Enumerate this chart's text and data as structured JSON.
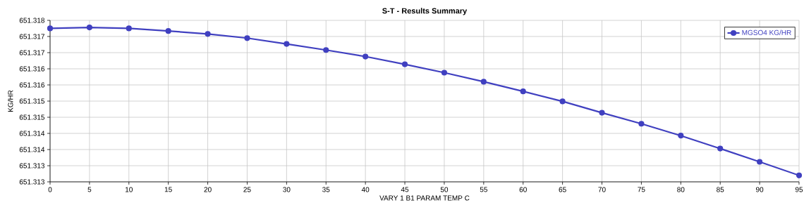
{
  "chart_data": {
    "type": "line",
    "title": "S-T - Results Summary",
    "xlabel": "VARY 1 B1 PARAM TEMP C",
    "ylabel": "KG/HR",
    "x": [
      0,
      5,
      10,
      15,
      20,
      25,
      30,
      35,
      40,
      45,
      50,
      55,
      60,
      65,
      70,
      75,
      80,
      85,
      90,
      95
    ],
    "series": [
      {
        "name": "MGSO4 KG/HR",
        "color": "#4040c0",
        "values": [
          651.31775,
          651.31778,
          651.31775,
          651.31767,
          651.31758,
          651.31745,
          651.31727,
          651.31708,
          651.31688,
          651.31664,
          651.31638,
          651.3161,
          651.3158,
          651.31549,
          651.31514,
          651.3148,
          651.31443,
          651.31403,
          651.31362,
          651.3132
        ]
      }
    ],
    "xlim": [
      0,
      95
    ],
    "xticks": [
      0,
      5,
      10,
      15,
      20,
      25,
      30,
      35,
      40,
      45,
      50,
      55,
      60,
      65,
      70,
      75,
      80,
      85,
      90,
      95
    ],
    "ylim": [
      651.313,
      651.318
    ],
    "yticks": [
      {
        "value": 651.313,
        "label": "651.313"
      },
      {
        "value": 651.3135,
        "label": "651.313"
      },
      {
        "value": 651.314,
        "label": "651.314"
      },
      {
        "value": 651.3145,
        "label": "651.314"
      },
      {
        "value": 651.315,
        "label": "651.315"
      },
      {
        "value": 651.3155,
        "label": "651.315"
      },
      {
        "value": 651.316,
        "label": "651.316"
      },
      {
        "value": 651.3165,
        "label": "651.316"
      },
      {
        "value": 651.317,
        "label": "651.317"
      },
      {
        "value": 651.3175,
        "label": "651.317"
      },
      {
        "value": 651.318,
        "label": "651.318"
      }
    ],
    "grid": true,
    "legend": "top right",
    "marker": "circle",
    "line_style": "solid"
  }
}
